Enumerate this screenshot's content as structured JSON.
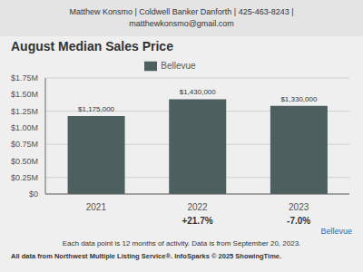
{
  "chart_data": {
    "type": "bar",
    "title": "August Median Sales Price",
    "subtitle": "Matthew Konsmo | Coldwell Banker Danforth | 425-463-8243 |",
    "categories": [
      "2021",
      "2022",
      "2023"
    ],
    "series": [
      {
        "name": "Bellevue",
        "color": "#4d5f5f",
        "values": [
          1175000,
          1430000,
          1330000
        ],
        "value_labels": [
          "$1,175,000",
          "$1,430,000",
          "$1,330,000"
        ]
      }
    ],
    "data_labels": true,
    "ylim": [
      0,
      1750000
    ],
    "yticks": [
      {
        "value": 0,
        "label": "$0"
      },
      {
        "value": 250000,
        "label": "$0.25M"
      },
      {
        "value": 500000,
        "label": "$0.50M"
      },
      {
        "value": 750000,
        "label": "$0.75M"
      },
      {
        "value": 1000000,
        "label": "$1.00M"
      },
      {
        "value": 1250000,
        "label": "$1.25M"
      },
      {
        "value": 1500000,
        "label": "$1.50M"
      },
      {
        "value": 1750000,
        "label": "$1.75M"
      }
    ],
    "grid": true,
    "legend": "top",
    "annotations": [
      {
        "text": "matthewkonsmo@gmail.com"
      },
      {
        "x": "2022",
        "text": "+21.7%"
      },
      {
        "x": "2023",
        "text": "-7.0%"
      },
      {
        "text": "Bellevue",
        "color": "#1a6faf"
      },
      {
        "text": "Each data point is 12 months of activity. Data is from September 20, 2023."
      },
      {
        "text": "All data from Northwest Multiple Listing Service®. InfoSparks © 2025 ShowingTime."
      }
    ]
  }
}
